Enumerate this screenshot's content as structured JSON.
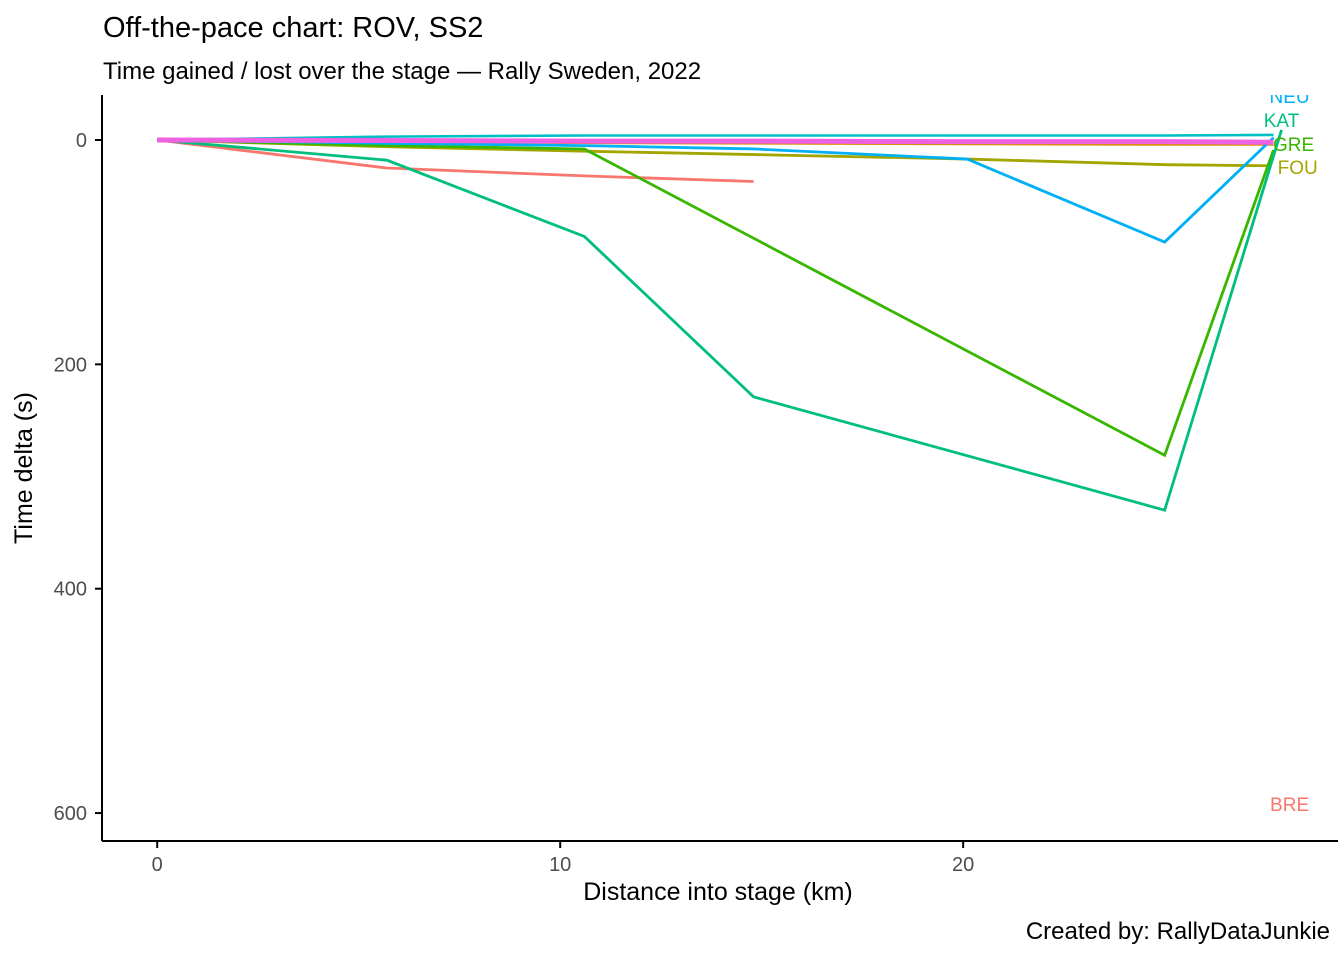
{
  "header": {
    "title": "Off-the-pace chart: ROV, SS2",
    "subtitle": "Time gained / lost over the stage — Rally Sweden, 2022"
  },
  "caption": {
    "text": "Created by: RallyDataJunkie"
  },
  "chart_data": {
    "type": "line",
    "title": "Off-the-pace chart: ROV, SS2",
    "subtitle": "Time gained / lost over the stage — Rally Sweden, 2022",
    "xlabel": "Distance into stage (km)",
    "ylabel": "Time delta (s)",
    "reference_driver": "ROV",
    "stage": "SS2",
    "event": "Rally Sweden, 2022",
    "grid": "off",
    "legend": "none (direct line labels at right edge)",
    "x_ticks": [
      0,
      10,
      20
    ],
    "y_ticks": [
      0,
      200,
      400,
      600
    ],
    "xlim": [
      -1.37,
      29.45
    ],
    "ylim": [
      -40.1,
      624.9
    ],
    "y_axis_points_down": true,
    "tick_label_color": "#4d4d4d",
    "axis_line_color": "#000000",
    "series": [
      {
        "name": "BRE",
        "color": "#F8766D",
        "width": 2.8,
        "x": [
          0,
          5.7,
          10.6,
          14.8
        ],
        "y": [
          0,
          25,
          32,
          37
        ],
        "label": "BRE",
        "label_x": 28.1,
        "label_y": 592,
        "label_clipped": false
      },
      {
        "name": "orange-line",
        "color": "#D89000",
        "width": 2.6,
        "x": [
          0,
          5.7,
          10.6,
          14.8,
          20.1,
          25,
          27.7
        ],
        "y": [
          0,
          1.5,
          2.5,
          3,
          3.5,
          4,
          4
        ]
      },
      {
        "name": "FOU",
        "color": "#A3A500",
        "width": 2.8,
        "x": [
          0,
          5.7,
          10.6,
          14.8,
          20.1,
          25,
          27.6
        ],
        "y": [
          0,
          6,
          10,
          13,
          17,
          22,
          23
        ],
        "label": "FOU",
        "label_x": 28.3,
        "label_y": 24,
        "label_clipped": false
      },
      {
        "name": "GRE",
        "color": "#39B600",
        "width": 2.8,
        "x": [
          0,
          5.7,
          10.6,
          25,
          27.7
        ],
        "y": [
          0,
          5,
          8,
          281,
          9
        ],
        "label": "GRE",
        "label_x": 28.2,
        "label_y": 3.5,
        "label_clipped": false
      },
      {
        "name": "KAT",
        "color": "#00BF7D",
        "width": 2.8,
        "x": [
          0,
          5.7,
          10.6,
          14.8,
          25,
          27.9
        ],
        "y": [
          0,
          18,
          86,
          229,
          330,
          -9
        ],
        "label": "KAT",
        "label_x": 27.9,
        "label_y": -18,
        "label_clipped": false
      },
      {
        "name": "cyan-line",
        "color": "#00BFC4",
        "width": 2.6,
        "x": [
          0,
          5.7,
          10.6,
          14.8,
          20.1,
          25,
          27.7
        ],
        "y": [
          0,
          -3,
          -4,
          -4,
          -4,
          -4,
          -4.5
        ]
      },
      {
        "name": "NEU",
        "color": "#00B0F6",
        "width": 2.8,
        "x": [
          0,
          5.7,
          10.6,
          14.8,
          20.1,
          25,
          27.7
        ],
        "y": [
          0,
          3,
          5,
          8,
          17,
          91,
          -2
        ],
        "label": "NEU",
        "label_x": 28.1,
        "label_y": -39,
        "label_clipped": true
      },
      {
        "name": "magenta-line",
        "color": "#EE61E3",
        "width": 5,
        "x": [
          0,
          5.7,
          10.6,
          14.8,
          20.1,
          25,
          27.7
        ],
        "y": [
          0,
          0.5,
          1,
          1,
          1.5,
          1.5,
          2
        ]
      }
    ]
  }
}
